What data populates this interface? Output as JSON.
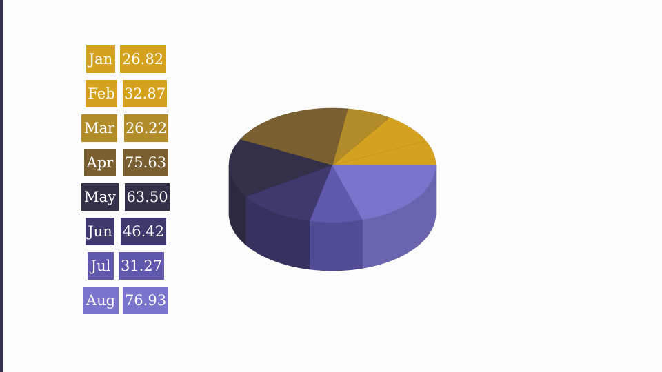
{
  "chart_data": {
    "type": "pie",
    "style": "3d",
    "title": "",
    "legend_placement": "left",
    "categories": [
      "Jan",
      "Feb",
      "Mar",
      "Apr",
      "May",
      "Jun",
      "Jul",
      "Aug"
    ],
    "values": [
      26.82,
      32.87,
      26.22,
      75.63,
      63.5,
      46.42,
      31.27,
      76.93
    ],
    "value_labels": [
      "26.82",
      "32.87",
      "26.22",
      "75.63",
      "63.50",
      "46.42",
      "31.27",
      "76.93"
    ],
    "colors": [
      "#d4a21e",
      "#d4a21e",
      "#b38c2a",
      "#7a5f30",
      "#34304a",
      "#3e3a6e",
      "#5f58ad",
      "#7b74cc"
    ]
  }
}
